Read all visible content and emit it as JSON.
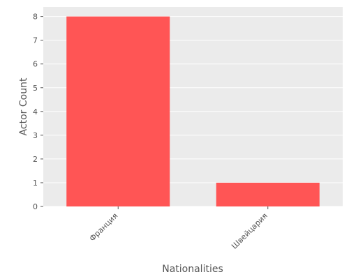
{
  "chart_data": {
    "type": "bar",
    "categories": [
      "Франция",
      "Швейцария"
    ],
    "values": [
      8,
      1
    ],
    "title": "",
    "xlabel": "Nationalities",
    "ylabel": "Actor Count",
    "ylim": [
      0,
      8.4
    ],
    "yticks": [
      0,
      1,
      2,
      3,
      4,
      5,
      6,
      7,
      8
    ],
    "grid": true,
    "bar_color": "#ff5555",
    "plot_background": "#ebebeb",
    "grid_color": "#ffffff",
    "style": "ggplot"
  }
}
